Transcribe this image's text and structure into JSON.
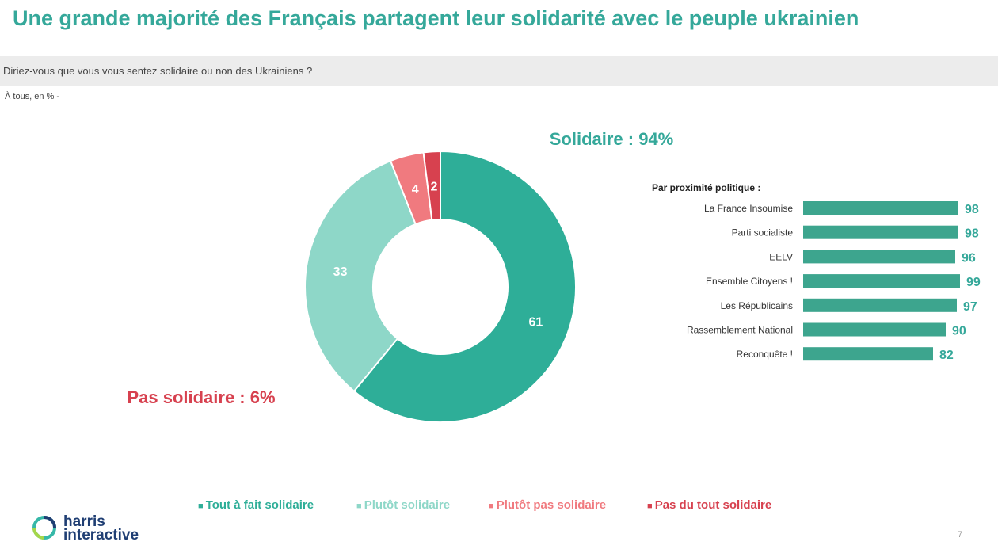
{
  "title": "Une grande majorité des Français partagent leur solidarité avec le peuple ukrainien",
  "question": "Diriez-vous que vous vous sentez solidaire ou non des Ukrainiens ?",
  "base": "À tous, en % -",
  "colors": {
    "tout_a_fait": "#2eae98",
    "plutot": "#8ed7c8",
    "plutot_pas": "#f07a7f",
    "pas_du_tout": "#d7414f",
    "title": "#35a89a",
    "bars": "#3da58e"
  },
  "summary": {
    "solidaire": "Solidaire : 94%",
    "pas_solidaire": "Pas solidaire : 6%"
  },
  "bar_section_title": "Par proximité politique :",
  "legend": [
    {
      "label": "Tout à fait solidaire",
      "color": "#2eae98"
    },
    {
      "label": "Plutôt solidaire",
      "color": "#8ed7c8"
    },
    {
      "label": "Plutôt pas solidaire",
      "color": "#f07a7f"
    },
    {
      "label": "Pas du tout solidaire",
      "color": "#d7414f"
    }
  ],
  "logo": {
    "line1": "harris",
    "line2": "interactive"
  },
  "page_number": "7",
  "chart_data": [
    {
      "type": "pie",
      "subtype": "donut",
      "title": "Diriez-vous que vous vous sentez solidaire ou non des Ukrainiens ?",
      "categories": [
        "Tout à fait solidaire",
        "Plutôt solidaire",
        "Plutôt pas solidaire",
        "Pas du tout solidaire"
      ],
      "values": [
        61,
        33,
        4,
        2
      ],
      "labels": [
        "61",
        "33",
        "4",
        "2"
      ]
    },
    {
      "type": "bar",
      "orientation": "horizontal",
      "title": "Par proximité politique :",
      "categories": [
        "La France Insoumise",
        "Parti socialiste",
        "EELV",
        "Ensemble Citoyens !",
        "Les Républicains",
        "Rassemblement National",
        "Reconquête !"
      ],
      "values": [
        98,
        98,
        96,
        99,
        97,
        90,
        82
      ],
      "labels": [
        "98",
        "98",
        "96",
        "99",
        "97",
        "90",
        "82"
      ],
      "xlim": [
        0,
        100
      ]
    }
  ]
}
